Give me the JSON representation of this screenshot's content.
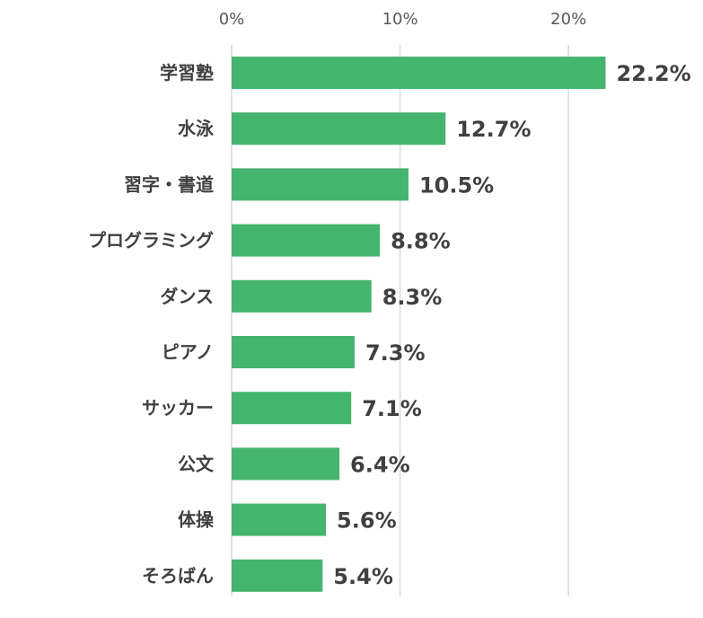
{
  "chart_data": {
    "type": "bar",
    "orientation": "horizontal",
    "categories": [
      "学習塾",
      "水泳",
      "習字・書道",
      "プログラミング",
      "ダンス",
      "ピアノ",
      "サッカー",
      "公文",
      "体操",
      "そろばん"
    ],
    "values": [
      22.2,
      12.7,
      10.5,
      8.8,
      8.3,
      7.3,
      7.1,
      6.4,
      5.6,
      5.4
    ],
    "data_labels": [
      "22.2%",
      "12.7%",
      "10.5%",
      "8.8%",
      "8.3%",
      "7.3%",
      "7.1%",
      "6.4%",
      "5.6%",
      "5.4%"
    ],
    "x_ticks": [
      0,
      10,
      20
    ],
    "x_tick_labels": [
      "0%",
      "10%",
      "20%"
    ],
    "xlim": [
      0,
      27.4
    ],
    "axis_position": "top",
    "grid": true,
    "bar_color": "#45b56e",
    "title": "",
    "xlabel": "",
    "ylabel": ""
  }
}
